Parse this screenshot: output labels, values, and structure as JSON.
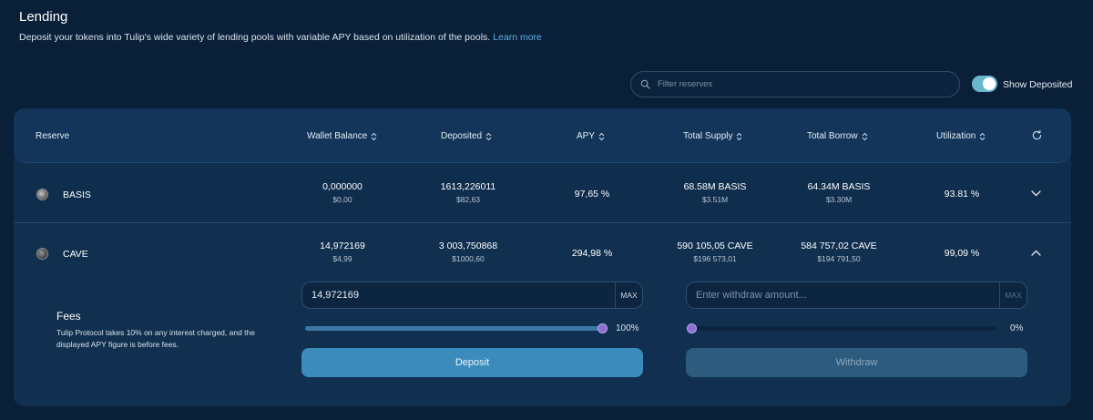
{
  "header": {
    "title": "Lending",
    "subtitle": "Deposit your tokens into Tulip's wide variety of lending pools with variable APY based on utilization of the pools.",
    "learn_more": "Learn more"
  },
  "filter": {
    "placeholder": "Filter reserves",
    "icon": "search-icon"
  },
  "toggle": {
    "label": "Show Deposited",
    "on": true,
    "color": "#6ab8cc"
  },
  "table": {
    "columns": {
      "reserve": "Reserve",
      "wallet_balance": "Wallet Balance",
      "deposited": "Deposited",
      "apy": "APY",
      "total_supply": "Total Supply",
      "total_borrow": "Total Borrow",
      "utilization": "Utilization"
    },
    "rows": [
      {
        "asset": "BASIS",
        "wallet_balance": "0,000000",
        "wallet_balance_usd": "$0,00",
        "deposited": "1613,226011",
        "deposited_usd": "$82,63",
        "apy": "97,65 %",
        "total_supply": "68.58M BASIS",
        "total_supply_usd": "$3.51M",
        "total_borrow": "64.34M BASIS",
        "total_borrow_usd": "$3.30M",
        "utilization": "93.81 %",
        "expanded": false
      },
      {
        "asset": "CAVE",
        "wallet_balance": "14,972169",
        "wallet_balance_usd": "$4,99",
        "deposited": "3 003,750868",
        "deposited_usd": "$1000,60",
        "apy": "294,98 %",
        "total_supply": "590 105,05 CAVE",
        "total_supply_usd": "$196 573,01",
        "total_borrow": "584 757,02 CAVE",
        "total_borrow_usd": "$194 791,50",
        "utilization": "99,09 %",
        "expanded": true
      }
    ]
  },
  "panel": {
    "fees_title": "Fees",
    "fees_desc": "Tulip Protocol takes 10% on any interest charged, and the displayed APY figure is before fees.",
    "deposit": {
      "value": "14,972169",
      "max_label": "MAX",
      "percent": 100,
      "percent_label": "100%",
      "button": "Deposit"
    },
    "withdraw": {
      "placeholder": "Enter withdraw amount...",
      "max_label": "MAX",
      "percent": 0,
      "percent_label": "0%",
      "button": "Withdraw"
    }
  },
  "colors": {
    "background": "#0a2038",
    "accent": "#3c8bbd",
    "link": "#5fb1e6",
    "slider_thumb": "#8a6fd1"
  }
}
